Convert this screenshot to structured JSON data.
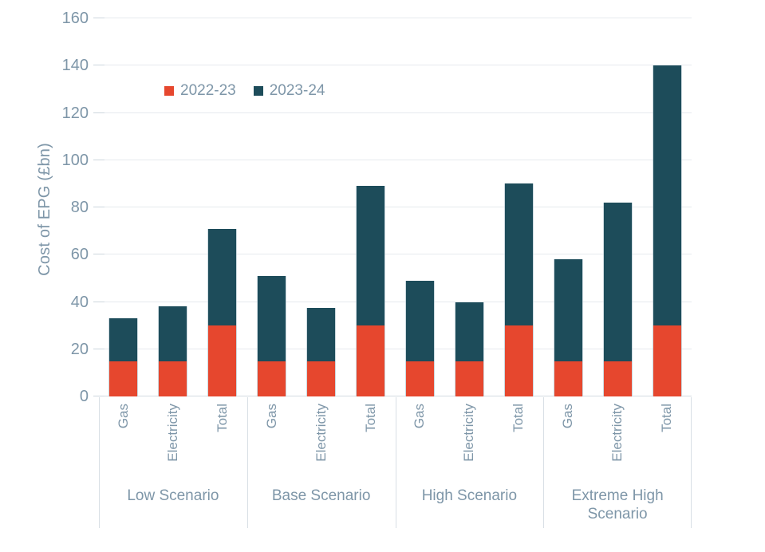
{
  "chart_data": {
    "type": "bar",
    "stacked": true,
    "title": "",
    "ylabel": "Cost of EPG (£bn)",
    "xlabel": "",
    "ylim": [
      0,
      160
    ],
    "yticks": [
      0,
      20,
      40,
      60,
      80,
      100,
      120,
      140,
      160
    ],
    "grid": true,
    "legend_position": "top-left-inside",
    "groups": [
      "Low Scenario",
      "Base Scenario",
      "High Scenario",
      "Extreme High Scenario"
    ],
    "categories": [
      "Gas",
      "Electricity",
      "Total"
    ],
    "series": [
      {
        "name": "2022-23",
        "color": "#e6472e",
        "values": [
          [
            15,
            15,
            30
          ],
          [
            15,
            15,
            30
          ],
          [
            15,
            15,
            30
          ],
          [
            15,
            15,
            30
          ]
        ]
      },
      {
        "name": "2023-24",
        "color": "#1d4c5a",
        "values": [
          [
            18,
            23,
            41
          ],
          [
            36,
            22.5,
            59
          ],
          [
            34,
            25,
            60
          ],
          [
            43,
            67,
            110
          ]
        ]
      }
    ]
  },
  "colors": {
    "series_2022_23": "#e6472e",
    "series_2023_24": "#1d4c5a",
    "axis_text": "#7e96a8",
    "gridline": "#e6eaee",
    "divider": "#d8dfe5"
  }
}
